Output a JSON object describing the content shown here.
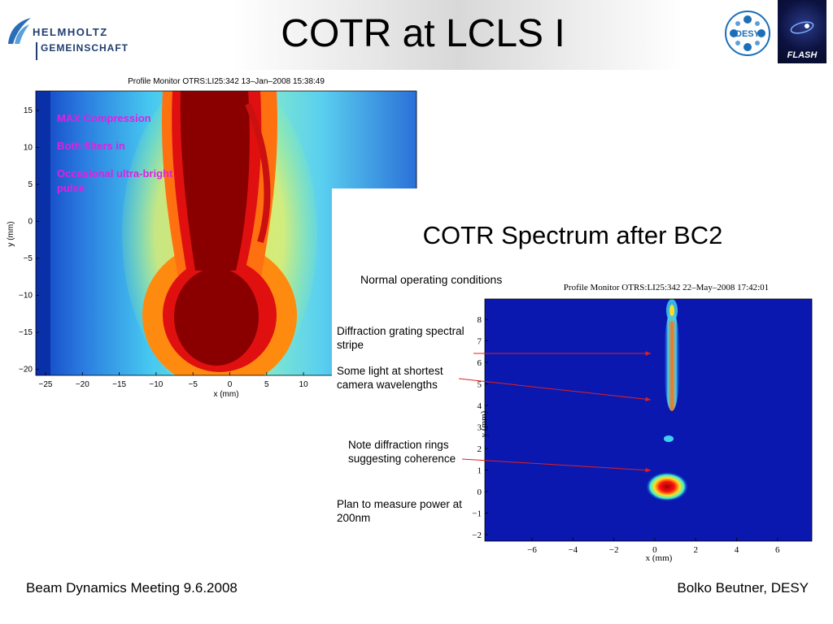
{
  "header": {
    "title": "COTR at LCLS I",
    "logo_line1": "HELMHOLTZ",
    "logo_line2": "GEMEINSCHAFT",
    "desy_label": "DESY",
    "flash_label": "FLASH"
  },
  "left_figure": {
    "caption": "Profile Monitor OTRS:LI25:342 13–Jan–2008 15:38:49",
    "annotations": [
      "MAX Compression",
      "Both filters in",
      "Occasional ultra-bright",
      "pulse"
    ],
    "annotation_color": "#e020e0",
    "y_label": "y (mm)",
    "x_label": "x (mm)",
    "y_ticks": [
      "15",
      "10",
      "5",
      "0",
      "−5",
      "−10",
      "−15",
      "−20"
    ],
    "x_ticks": [
      "−25",
      "−20",
      "−15",
      "−10",
      "−5",
      "0",
      "5",
      "10"
    ]
  },
  "right_figure": {
    "heading": "COTR Spectrum after BC2",
    "condition": "Normal operating conditions",
    "caption": "Profile Monitor OTRS:LI25:342 22–May–2008 17:42:01",
    "notes": [
      {
        "lines": [
          "Diffraction grating spectral",
          "stripe"
        ]
      },
      {
        "lines": [
          "Some light at shortest",
          "camera wavelengths"
        ]
      },
      {
        "lines": [
          "Note diffraction rings",
          "suggesting coherence"
        ]
      },
      {
        "lines": [
          "Plan to measure power at",
          "200nm"
        ]
      }
    ],
    "arrow_color": "#e02020",
    "y_label": "y (mm)",
    "x_label": "x (mm)",
    "y_ticks": [
      "8",
      "7",
      "6",
      "5",
      "4",
      "3",
      "2",
      "1",
      "0",
      "−1",
      "−2"
    ],
    "x_ticks": [
      "−6",
      "−4",
      "−2",
      "0",
      "2",
      "4",
      "6"
    ]
  },
  "footer": {
    "left": "Beam Dynamics Meeting 9.6.2008",
    "right": "Bolko Beutner, DESY"
  }
}
